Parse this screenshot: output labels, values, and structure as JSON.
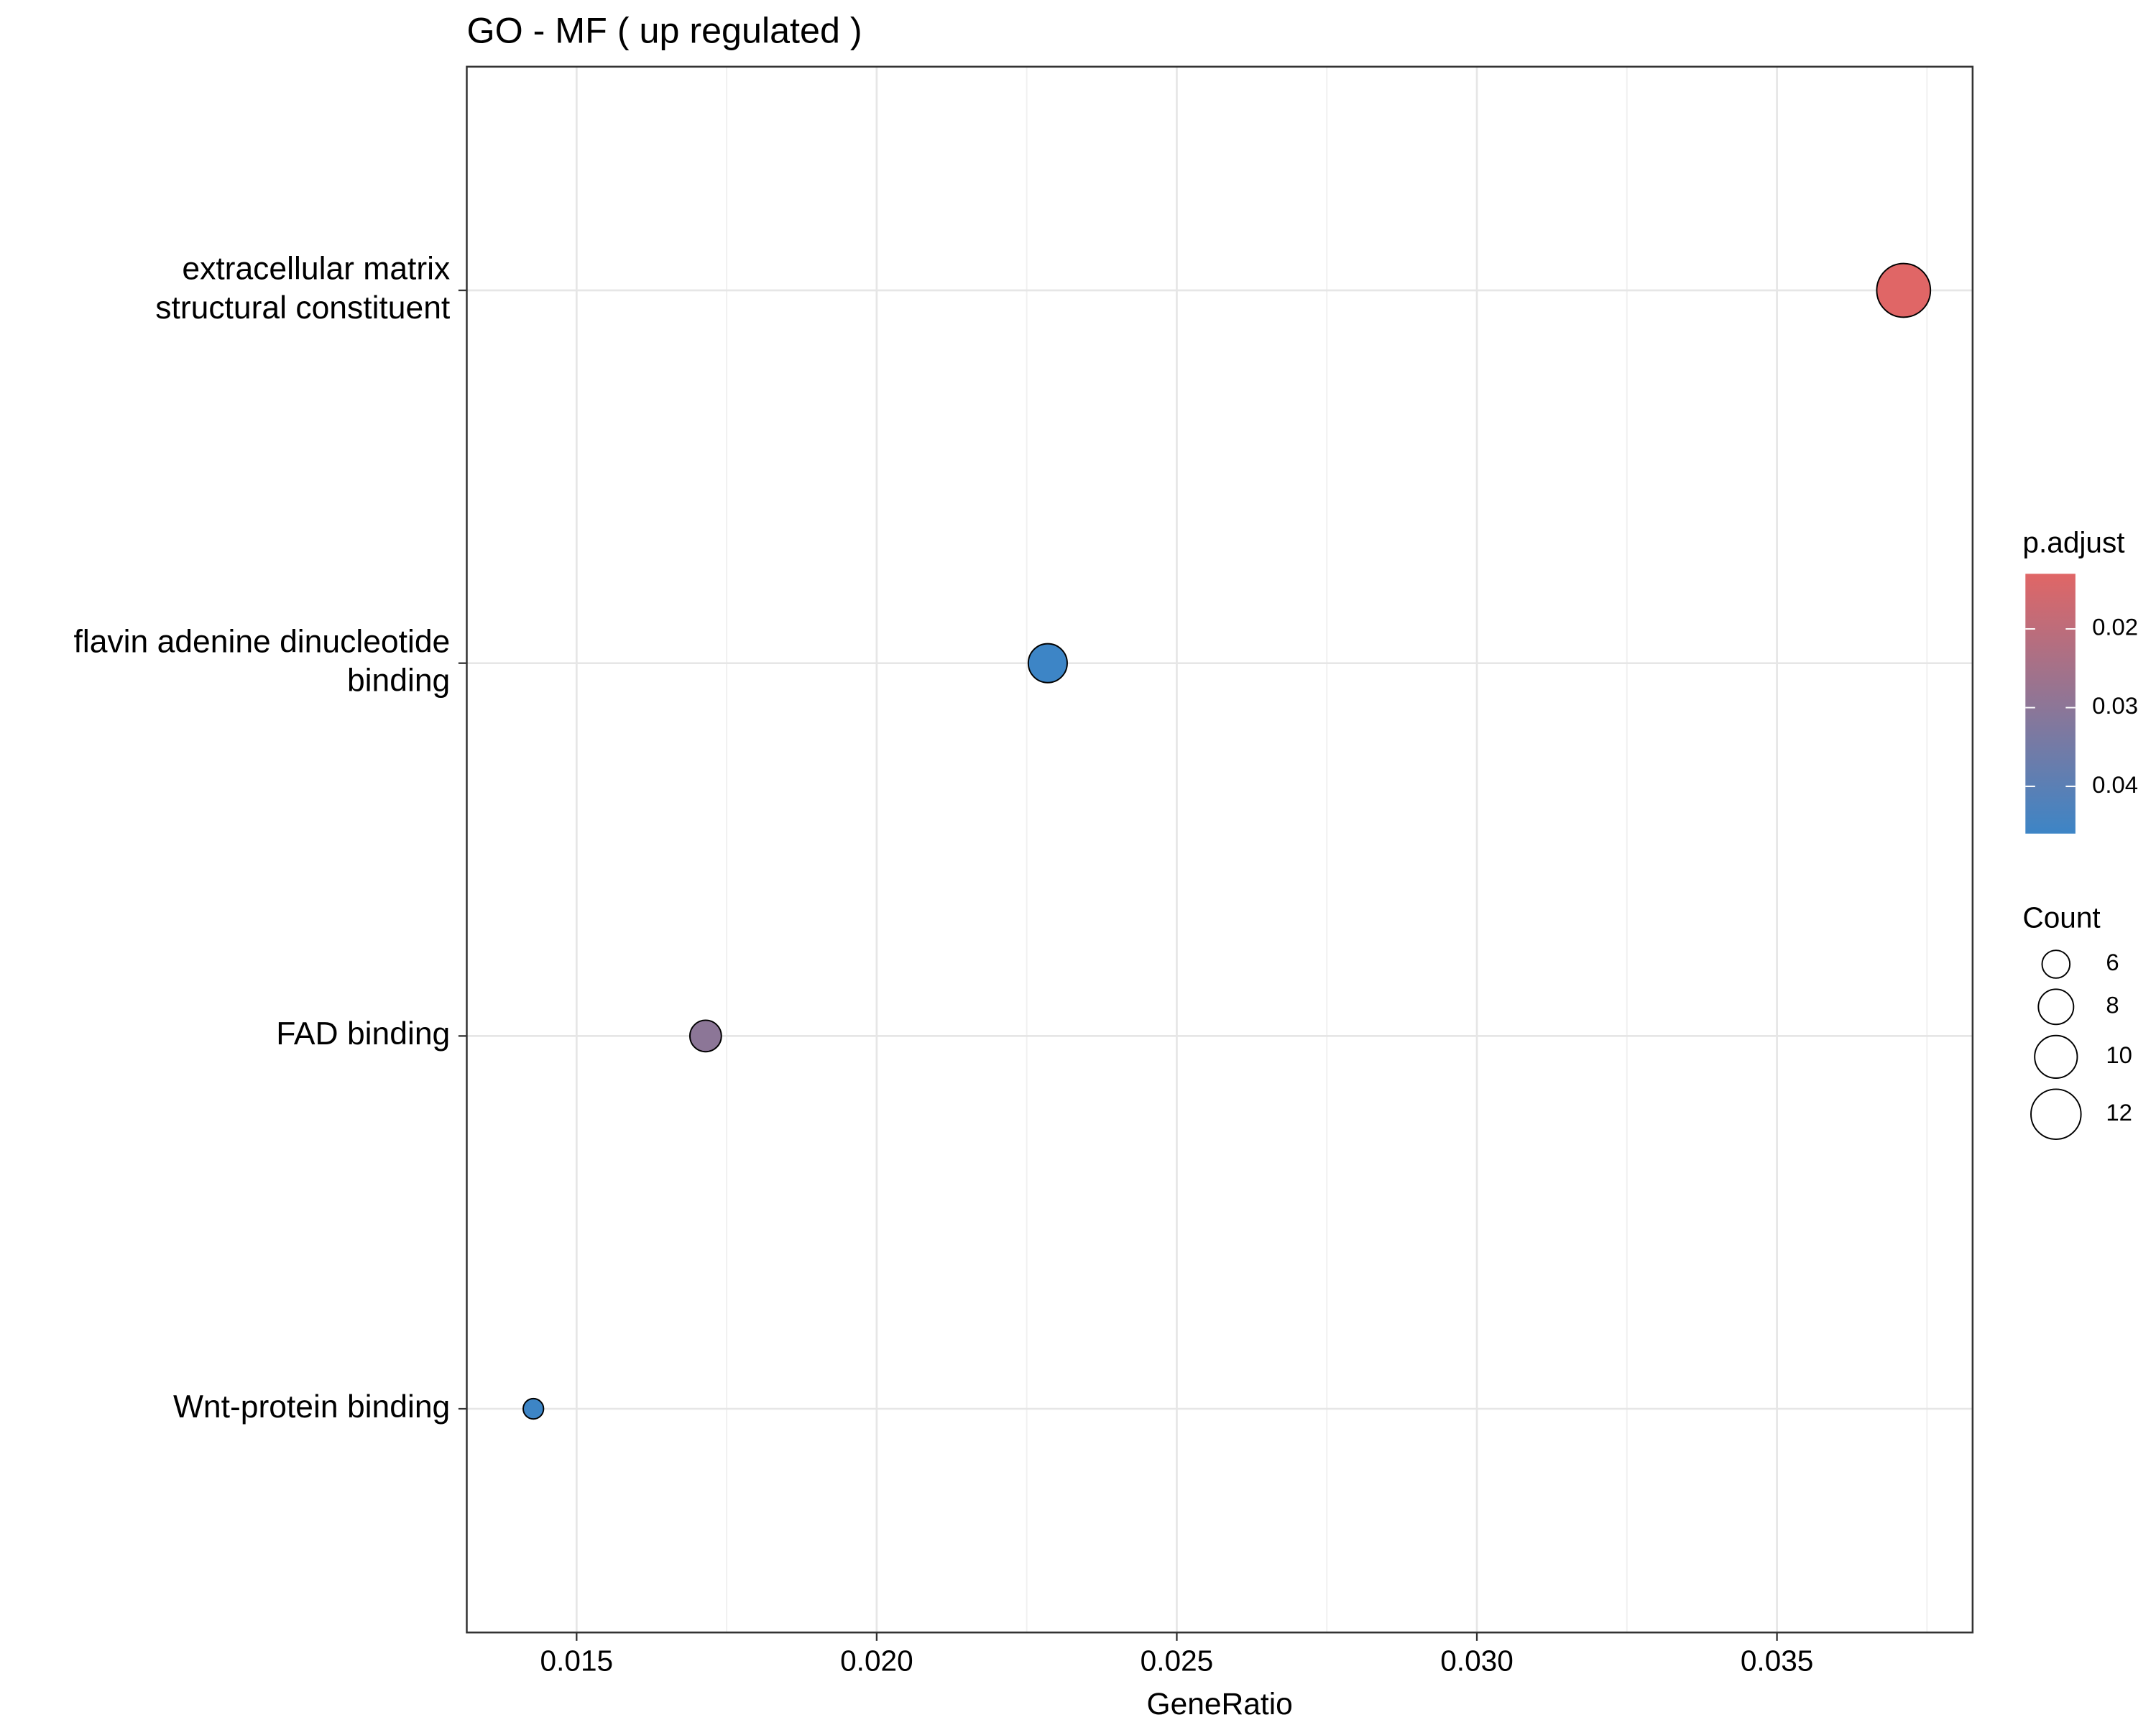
{
  "chart_data": {
    "type": "dot",
    "title": "GO - MF ( up regulated )",
    "x_label": "GeneRatio",
    "categories": [
      [
        "extracellular matrix",
        "structural constituent"
      ],
      [
        "flavin adenine dinucleotide",
        "binding"
      ],
      [
        "FAD binding"
      ],
      [
        "Wnt-protein binding"
      ]
    ],
    "x": [
      0.03711,
      0.02285,
      0.01715,
      0.01428
    ],
    "counts": [
      13,
      9,
      7,
      4
    ],
    "p_adjust": [
      0.013,
      0.046,
      0.03,
      0.046
    ],
    "xlim": [
      0.01317,
      0.03826
    ],
    "xticks": [
      {
        "value": 0.015,
        "label": "0.015"
      },
      {
        "value": 0.02,
        "label": "0.020"
      },
      {
        "value": 0.025,
        "label": "0.025"
      },
      {
        "value": 0.03,
        "label": "0.030"
      },
      {
        "value": 0.035,
        "label": "0.035"
      }
    ],
    "color_legend_title": "p.adjust",
    "color_lim": [
      0.013,
      0.046
    ],
    "color_ticks": [
      0.02,
      0.03,
      0.04
    ],
    "color_low": "#e06666",
    "color_high": "#3d85c6",
    "size_legend_title": "Count",
    "size_ticks": [
      6,
      8,
      10,
      12
    ],
    "grid": true
  }
}
